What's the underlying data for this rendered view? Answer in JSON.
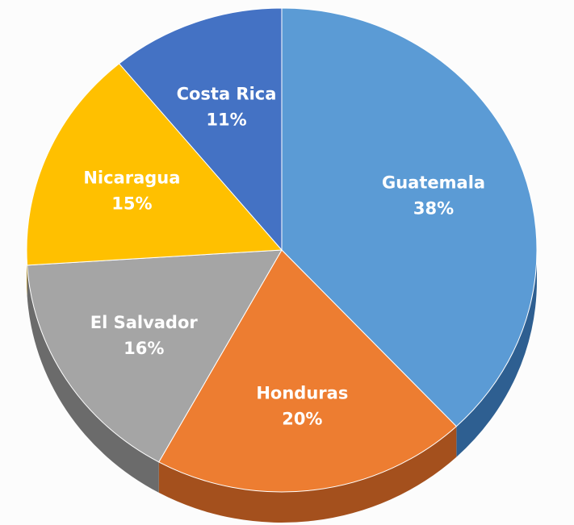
{
  "chart_data": {
    "type": "pie",
    "style": "3d",
    "title": "",
    "slices": [
      {
        "label": "Guatemala",
        "value": 38,
        "display": "38%",
        "color": "#5b9bd5",
        "side_color": "#2e5f91"
      },
      {
        "label": "Honduras",
        "value": 20,
        "display": "20%",
        "color": "#ed7d31",
        "side_color": "#a4501d"
      },
      {
        "label": "El Salvador",
        "value": 16,
        "display": "16%",
        "color": "#a5a5a5",
        "side_color": "#6b6b6b"
      },
      {
        "label": "Nicaragua",
        "value": 15,
        "display": "15%",
        "color": "#ffc000",
        "side_color": "#b88a00"
      },
      {
        "label": "Costa Rica",
        "value": 11,
        "display": "11%",
        "color": "#4472c4",
        "side_color": "#2a4a85"
      }
    ],
    "label_color": "#ffffff"
  }
}
